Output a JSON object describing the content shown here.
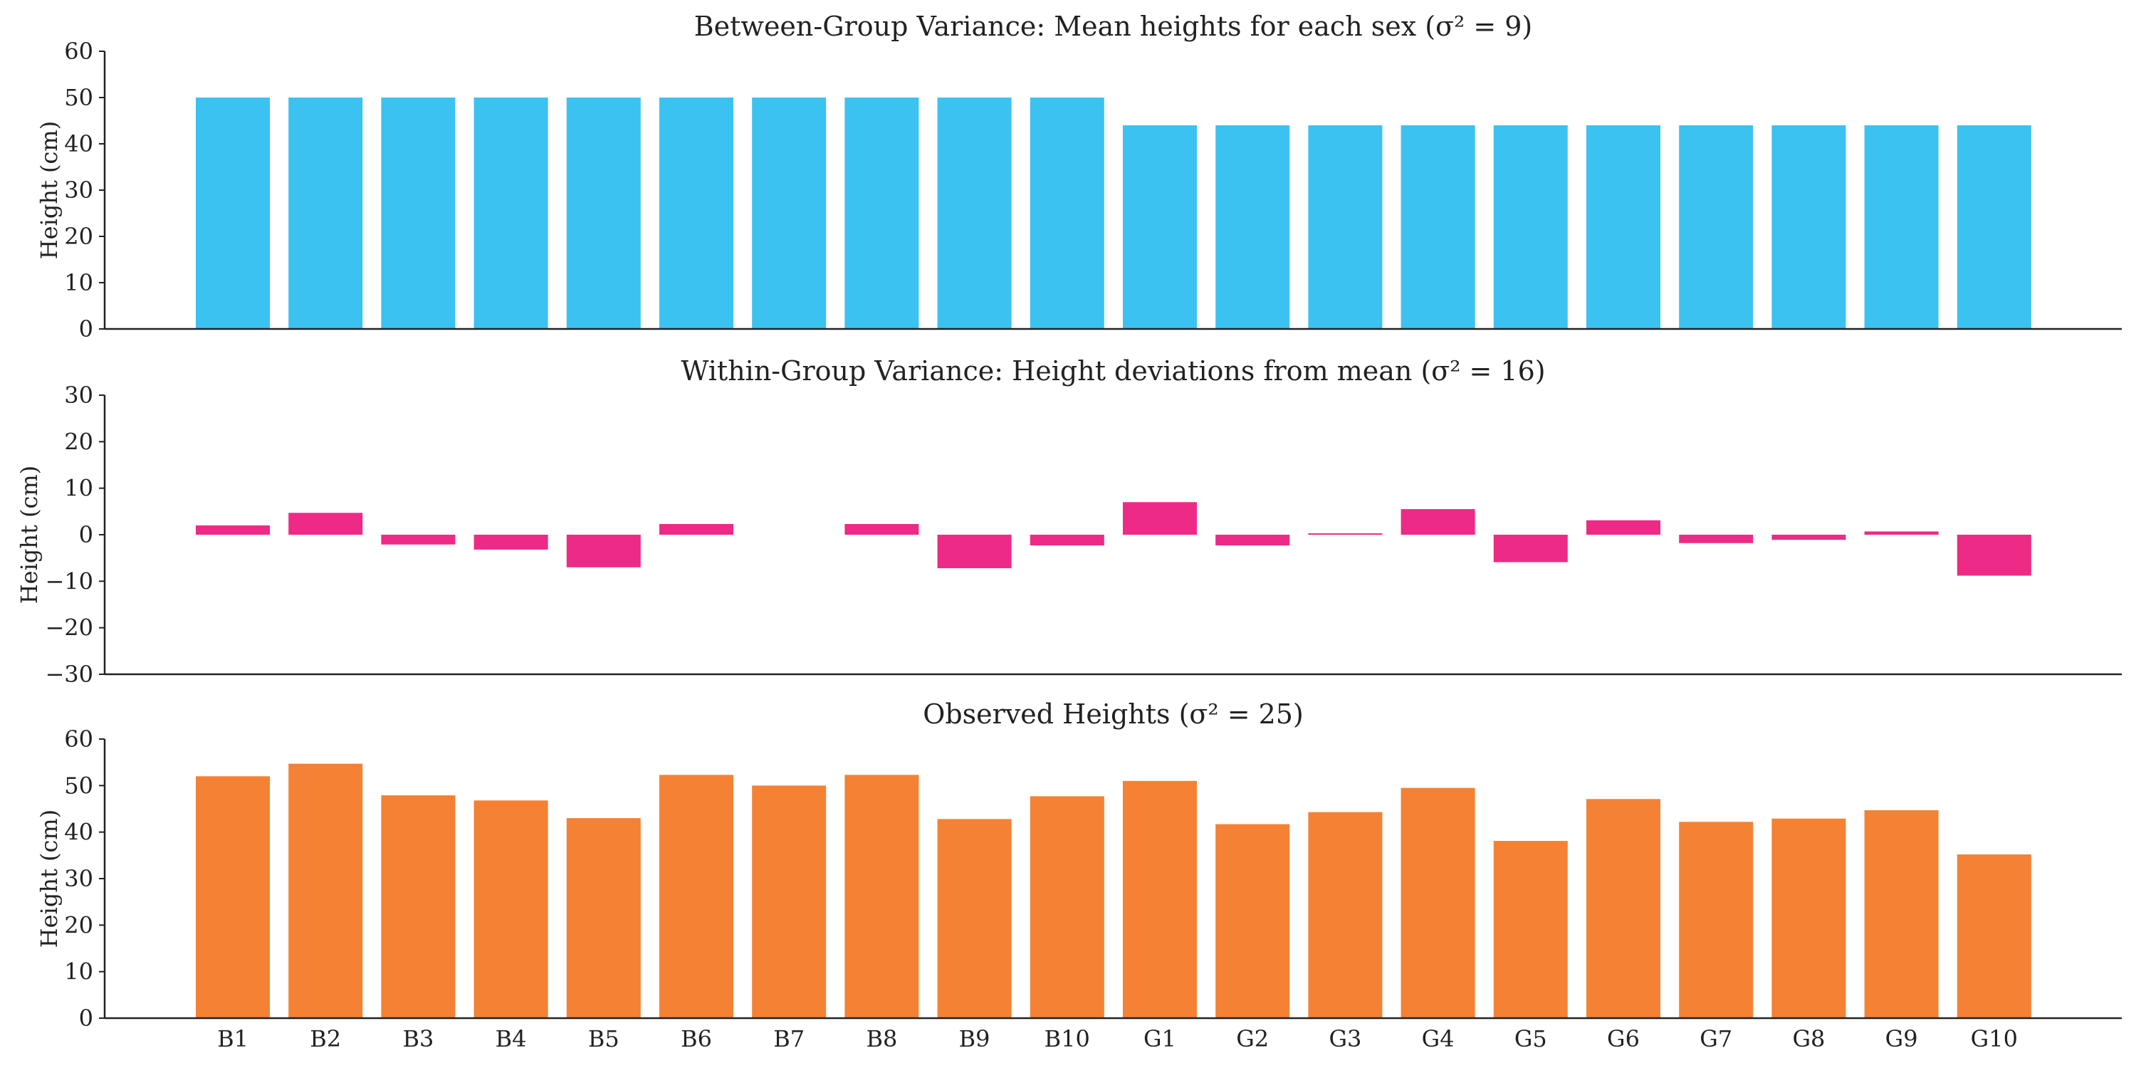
{
  "chart_data": [
    {
      "type": "bar",
      "title": "Between-Group Variance: Mean heights for each sex (σ² = 9)",
      "ylabel": "Height (cm)",
      "ylim": [
        0,
        60
      ],
      "yticks": [
        0,
        10,
        20,
        30,
        40,
        50,
        60
      ],
      "color": "#3bc2f1",
      "categories": [
        "B1",
        "B2",
        "B3",
        "B4",
        "B5",
        "B6",
        "B7",
        "B8",
        "B9",
        "B10",
        "G1",
        "G2",
        "G3",
        "G4",
        "G5",
        "G6",
        "G7",
        "G8",
        "G9",
        "G10"
      ],
      "values": [
        50,
        50,
        50,
        50,
        50,
        50,
        50,
        50,
        50,
        50,
        44,
        44,
        44,
        44,
        44,
        44,
        44,
        44,
        44,
        44
      ],
      "grid": false
    },
    {
      "type": "bar",
      "title": "Within-Group Variance: Height deviations from mean (σ² = 16)",
      "ylabel": "Height (cm)",
      "ylim": [
        -30,
        30
      ],
      "yticks": [
        -30,
        -20,
        -10,
        0,
        10,
        20,
        30
      ],
      "ytick_labels": [
        "−30",
        "−20",
        "−10",
        "0",
        "10",
        "20",
        "30"
      ],
      "color": "#ed2a85",
      "categories": [
        "B1",
        "B2",
        "B3",
        "B4",
        "B5",
        "B6",
        "B7",
        "B8",
        "B9",
        "B10",
        "G1",
        "G2",
        "G3",
        "G4",
        "G5",
        "G6",
        "G7",
        "G8",
        "G9",
        "G10"
      ],
      "values": [
        2,
        4.7,
        -2.1,
        -3.2,
        -7,
        2.3,
        0,
        2.3,
        -7.2,
        -2.3,
        7,
        -2.3,
        0.3,
        5.5,
        -5.9,
        3.1,
        -1.8,
        -1.1,
        0.7,
        -8.8
      ],
      "grid": false
    },
    {
      "type": "bar",
      "title": "Observed Heights (σ² = 25)",
      "ylabel": "Height (cm)",
      "ylim": [
        0,
        60
      ],
      "yticks": [
        0,
        10,
        20,
        30,
        40,
        50,
        60
      ],
      "color": "#f48134",
      "categories": [
        "B1",
        "B2",
        "B3",
        "B4",
        "B5",
        "B6",
        "B7",
        "B8",
        "B9",
        "B10",
        "G1",
        "G2",
        "G3",
        "G4",
        "G5",
        "G6",
        "G7",
        "G8",
        "G9",
        "G10"
      ],
      "values": [
        52,
        54.7,
        47.9,
        46.8,
        43,
        52.3,
        50,
        52.3,
        42.8,
        47.7,
        51,
        41.7,
        44.3,
        49.5,
        38.1,
        47.1,
        42.2,
        42.9,
        44.7,
        35.2
      ],
      "xlabel": "",
      "grid": false
    }
  ]
}
